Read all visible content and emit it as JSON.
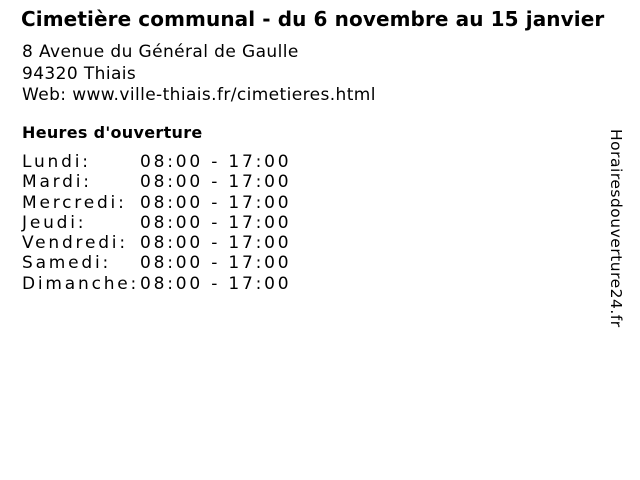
{
  "header": {
    "title": "Cimetière communal - du 6 novembre au 15 janvier",
    "address_line1": "8 Avenue du Général de Gaulle",
    "address_line2": "94320 Thiais",
    "web_label": "Web:",
    "web_url": "www.ville-thiais.fr/cimetieres.html"
  },
  "hours": {
    "heading": "Heures d'ouverture",
    "rows": [
      {
        "day": "Lundi:",
        "time": "08:00 - 17:00"
      },
      {
        "day": "Mardi:",
        "time": "08:00 - 17:00"
      },
      {
        "day": "Mercredi:",
        "time": "08:00 - 17:00"
      },
      {
        "day": "Jeudi:",
        "time": "08:00 - 17:00"
      },
      {
        "day": "Vendredi:",
        "time": "08:00 - 17:00"
      },
      {
        "day": "Samedi:",
        "time": "08:00 - 17:00"
      },
      {
        "day": "Dimanche:",
        "time": "08:00 - 17:00"
      }
    ]
  },
  "watermark": {
    "text": "Horairesdouverture24.fr"
  },
  "colors": {
    "text": "#000000",
    "background": "#ffffff"
  }
}
